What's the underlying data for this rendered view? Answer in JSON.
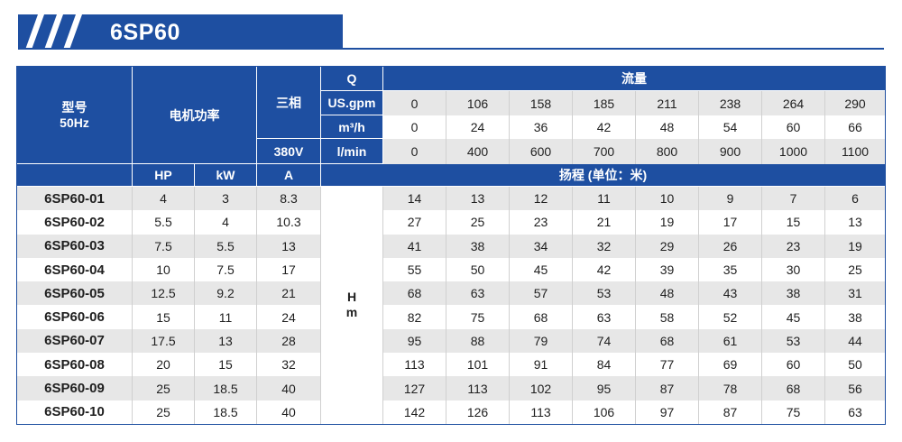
{
  "colors": {
    "primary": "#1e4fa1",
    "header_text": "#ffffff",
    "row_alt": "#e7e7e7",
    "row_plain": "#ffffff",
    "text": "#1f1f1f",
    "grid_line": "#d0d0d0"
  },
  "banner": {
    "title": "6SP60",
    "icon": "diagonal-stripes-icon"
  },
  "table": {
    "header": {
      "model_label": "型号",
      "frequency": "50Hz",
      "power_label": "电机功率",
      "phase_label": "三相",
      "voltage": "380V",
      "q_label": "Q",
      "flow_label": "流量",
      "flow_rows": [
        {
          "unit": "US.gpm",
          "values": [
            0,
            106,
            158,
            185,
            211,
            238,
            264,
            290
          ]
        },
        {
          "unit": "m³/h",
          "values": [
            0,
            24,
            36,
            42,
            48,
            54,
            60,
            66
          ]
        },
        {
          "unit": "l/min",
          "values": [
            0,
            400,
            600,
            700,
            800,
            900,
            1000,
            1100
          ]
        }
      ],
      "hp_label": "HP",
      "kw_label": "kW",
      "amp_label": "A",
      "head_label": "扬程 (单位：米)",
      "head_axis": [
        "H",
        "m"
      ]
    },
    "rows": [
      {
        "model": "6SP60-01",
        "hp": 4,
        "kw": 3,
        "amps": 8.3,
        "head": [
          14,
          13,
          12,
          11,
          10,
          9,
          7,
          6
        ]
      },
      {
        "model": "6SP60-02",
        "hp": 5.5,
        "kw": 4,
        "amps": 10.3,
        "head": [
          27,
          25,
          23,
          21,
          19,
          17,
          15,
          13
        ]
      },
      {
        "model": "6SP60-03",
        "hp": 7.5,
        "kw": 5.5,
        "amps": 13,
        "head": [
          41,
          38,
          34,
          32,
          29,
          26,
          23,
          19
        ]
      },
      {
        "model": "6SP60-04",
        "hp": 10,
        "kw": 7.5,
        "amps": 17,
        "head": [
          55,
          50,
          45,
          42,
          39,
          35,
          30,
          25
        ]
      },
      {
        "model": "6SP60-05",
        "hp": 12.5,
        "kw": 9.2,
        "amps": 21,
        "head": [
          68,
          63,
          57,
          53,
          48,
          43,
          38,
          31
        ]
      },
      {
        "model": "6SP60-06",
        "hp": 15,
        "kw": 11,
        "amps": 24,
        "head": [
          82,
          75,
          68,
          63,
          58,
          52,
          45,
          38
        ]
      },
      {
        "model": "6SP60-07",
        "hp": 17.5,
        "kw": 13,
        "amps": 28,
        "head": [
          95,
          88,
          79,
          74,
          68,
          61,
          53,
          44
        ]
      },
      {
        "model": "6SP60-08",
        "hp": 20,
        "kw": 15,
        "amps": 32,
        "head": [
          113,
          101,
          91,
          84,
          77,
          69,
          60,
          50
        ]
      },
      {
        "model": "6SP60-09",
        "hp": 25,
        "kw": 18.5,
        "amps": 40,
        "head": [
          127,
          113,
          102,
          95,
          87,
          78,
          68,
          56
        ]
      },
      {
        "model": "6SP60-10",
        "hp": 25,
        "kw": 18.5,
        "amps": 40,
        "head": [
          142,
          126,
          113,
          106,
          97,
          87,
          75,
          63
        ]
      }
    ]
  }
}
